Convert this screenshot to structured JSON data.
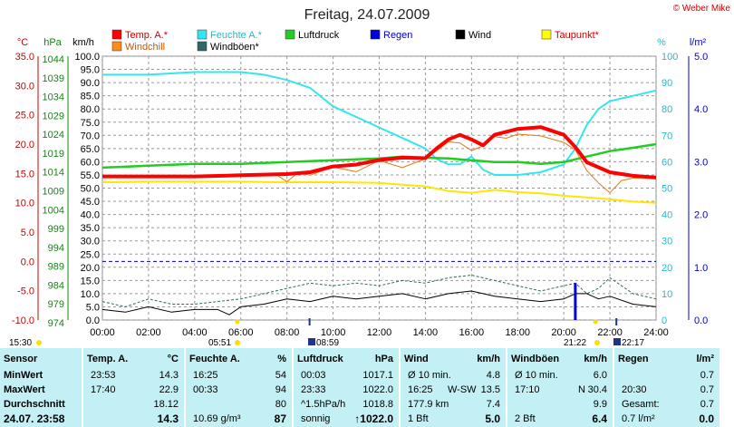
{
  "header": {
    "title": "Freitag, 24.07.2009",
    "copyright": "© Weber Mike"
  },
  "legend": [
    {
      "label": "Temp. A.*",
      "color": "#ff0000"
    },
    {
      "label": "Feuchte A.*",
      "color": "#33e6f0"
    },
    {
      "label": "Luftdruck",
      "color": "#22cc22"
    },
    {
      "label": "Regen",
      "color": "#0000e0"
    },
    {
      "label": "Wind",
      "color": "#000000"
    },
    {
      "label": "Taupunkt*",
      "color": "#ffff00"
    },
    {
      "label": "Windchill",
      "color": "#ff8c1a"
    },
    {
      "label": "Windböen*",
      "color": "#336666"
    }
  ],
  "axes": {
    "temp_unit": "°C",
    "pressure_unit": "hPa",
    "speed_unit": "km/h",
    "pct_unit": "%",
    "rain_unit": "l/m²",
    "temp_ticks": [
      "35.0",
      "30.0",
      "25.0",
      "20.0",
      "15.0",
      "10.0",
      "5.0",
      "0.0",
      "-5.0",
      "-10.0"
    ],
    "pressure_ticks": [
      "1044",
      "1039",
      "1034",
      "1029",
      "1024",
      "1019",
      "1014",
      "1009",
      "1004",
      "999",
      "994",
      "989",
      "984",
      "979",
      "974"
    ],
    "speed_ticks": [
      "100.0",
      "95.0",
      "90.0",
      "85.0",
      "80.0",
      "75.0",
      "70.0",
      "65.0",
      "60.0",
      "55.0",
      "50.0",
      "45.0",
      "40.0",
      "35.0",
      "30.0",
      "25.0",
      "20.0",
      "15.0",
      "10.0",
      "5.0",
      "0.0"
    ],
    "pct_ticks": [
      "100",
      "90",
      "80",
      "70",
      "60",
      "50",
      "40",
      "30",
      "20",
      "10",
      "0"
    ],
    "rain_ticks": [
      "5.0",
      "4.0",
      "3.0",
      "2.0",
      "1.0",
      "0.0"
    ],
    "time_ticks": [
      "00:00",
      "02:00",
      "04:00",
      "06:00",
      "08:00",
      "10:00",
      "12:00",
      "14:00",
      "16:00",
      "18:00",
      "20:00",
      "22:00",
      "24:00"
    ]
  },
  "sun_events": {
    "sunrise_label": "05:51",
    "sunset_label": "21:22",
    "moonrise_label": "08:59",
    "moonset_label": "22:17",
    "left_label": "15:30"
  },
  "chart_data": {
    "type": "line",
    "title": "Freitag, 24.07.2009",
    "x_range": [
      "00:00",
      "24:00"
    ],
    "series": [
      {
        "name": "Temp. A.*",
        "axis": "°C",
        "x": [
          0,
          2,
          4,
          6,
          8,
          9,
          10,
          11,
          12,
          13,
          14,
          14.5,
          15,
          15.5,
          16,
          16.5,
          17,
          17.5,
          18,
          19,
          20,
          20.5,
          21,
          22,
          23,
          24
        ],
        "values": [
          14.5,
          14.5,
          14.5,
          14.7,
          14.9,
          15.2,
          16.2,
          16.5,
          17.3,
          17.7,
          17.6,
          19.3,
          20.8,
          21.6,
          20.8,
          19.8,
          21.6,
          22.1,
          22.6,
          22.9,
          21.6,
          19.5,
          16.9,
          15.2,
          14.6,
          14.3
        ]
      },
      {
        "name": "Windchill",
        "axis": "°C",
        "x": [
          0,
          2,
          4,
          6,
          7.5,
          8,
          8.5,
          9,
          10,
          11,
          12,
          13,
          14,
          14.5,
          15,
          15.5,
          16,
          16.5,
          17,
          17.5,
          18,
          19,
          20,
          20.5,
          21,
          21.5,
          22,
          22.5,
          23,
          24
        ],
        "values": [
          14.5,
          14.5,
          14.5,
          14.7,
          14.9,
          13.6,
          15.2,
          14.7,
          16.1,
          15.3,
          17.2,
          16.0,
          17.5,
          18.9,
          20.4,
          20.2,
          18.9,
          19.7,
          21.3,
          21.0,
          21.7,
          21.4,
          20.3,
          19.0,
          15.5,
          13.4,
          11.7,
          13.8,
          14.2,
          14.3
        ]
      },
      {
        "name": "Feuchte A.*",
        "axis": "%",
        "x": [
          0,
          2,
          4,
          6,
          7,
          8,
          9,
          10,
          11,
          12,
          13,
          14,
          14.5,
          15,
          15.5,
          16,
          16.5,
          17,
          18,
          19,
          20,
          20.5,
          21,
          21.5,
          22,
          23,
          24
        ],
        "values": [
          93,
          93,
          94,
          94,
          93,
          91,
          88,
          81,
          77,
          73,
          69,
          65,
          61,
          59,
          59,
          62,
          57,
          55,
          55,
          56,
          59,
          65,
          74,
          80,
          83,
          85,
          87
        ]
      },
      {
        "name": "Luftdruck",
        "axis": "hPa",
        "x": [
          0,
          2,
          4,
          6,
          8,
          10,
          12,
          13,
          14,
          15,
          16,
          17,
          18,
          19,
          20,
          21,
          22,
          23,
          24
        ],
        "values": [
          1015.6,
          1016.1,
          1016.6,
          1016.6,
          1017.1,
          1017.6,
          1018.1,
          1018.6,
          1018.3,
          1018.1,
          1017.6,
          1017.1,
          1017.1,
          1016.6,
          1017.1,
          1018.6,
          1020.1,
          1021.0,
          1022.0
        ]
      },
      {
        "name": "Taupunkt*",
        "axis": "°C",
        "x": [
          0,
          2,
          4,
          6,
          8,
          10,
          12,
          14,
          15,
          16,
          17,
          18,
          19,
          20,
          21,
          22,
          23,
          24
        ],
        "values": [
          13.5,
          13.6,
          13.6,
          13.6,
          13.5,
          13.5,
          13.4,
          12.8,
          12.0,
          11.7,
          12.2,
          11.8,
          11.6,
          11.2,
          10.9,
          10.6,
          10.2,
          10.0
        ]
      },
      {
        "name": "Wind",
        "axis": "km/h",
        "x": [
          0,
          1,
          2,
          3,
          4,
          5,
          5.5,
          6,
          7,
          8,
          9,
          10,
          11,
          12,
          13,
          14,
          15,
          16,
          17,
          18,
          19,
          20,
          20.5,
          21,
          21.5,
          22,
          23,
          24
        ],
        "values": [
          4,
          3,
          5,
          3,
          4,
          4,
          2,
          5,
          6,
          8,
          7,
          9,
          8,
          9,
          10,
          8,
          10,
          11,
          9,
          8,
          7,
          8,
          10,
          10,
          8,
          9,
          6,
          5
        ]
      },
      {
        "name": "Windböen*",
        "axis": "km/h",
        "x": [
          0,
          1,
          2,
          3,
          4,
          5,
          6,
          7,
          8,
          9,
          10,
          11,
          12,
          13,
          14,
          15,
          16,
          17,
          18,
          19,
          20,
          20.5,
          21,
          21.5,
          22,
          23,
          24
        ],
        "values": [
          7,
          5,
          8,
          6,
          6,
          7,
          8,
          10,
          12,
          14,
          13,
          14,
          13,
          15,
          14,
          16,
          17,
          15,
          13,
          11,
          13,
          14,
          10,
          12,
          16,
          10,
          8
        ]
      },
      {
        "name": "Regen",
        "axis": "l/m²",
        "x": [
          20.5
        ],
        "values": [
          0.7
        ]
      }
    ]
  },
  "table": {
    "columns": [
      {
        "title": "Sensor",
        "unit": ""
      },
      {
        "title": "Temp. A.",
        "unit": "°C"
      },
      {
        "title": "Feuchte A.",
        "unit": "%"
      },
      {
        "title": "Luftdruck",
        "unit": "hPa"
      },
      {
        "title": "Wind",
        "unit": "km/h"
      },
      {
        "title": "Windböen",
        "unit": "km/h"
      },
      {
        "title": "Regen",
        "unit": "l/m²"
      }
    ],
    "row_labels": [
      "MinWert",
      "MaxWert",
      "Durchschnitt",
      "24.07. 23:58"
    ],
    "temp": [
      [
        "23:53",
        "14.3"
      ],
      [
        "17:40",
        "22.9"
      ],
      [
        "",
        "18.12"
      ],
      [
        "",
        "14.3"
      ]
    ],
    "humidity": [
      [
        "16:25",
        "54"
      ],
      [
        "00:33",
        "94"
      ],
      [
        "",
        "80"
      ],
      [
        "10.69 g/m³",
        "87"
      ]
    ],
    "pressure": [
      [
        "00:03",
        "1017.1"
      ],
      [
        "23:33",
        "1022.0"
      ],
      [
        "^1.5hPa/h",
        "1018.8"
      ],
      [
        "sonnig",
        "↑1022.0"
      ]
    ],
    "wind": [
      [
        "Ø 10 min.",
        "",
        "4.8"
      ],
      [
        "16:25",
        "W-SW",
        "13.5"
      ],
      [
        "177.9 km",
        "",
        "7.4"
      ],
      [
        "1 Bft",
        "",
        "5.0"
      ]
    ],
    "gust": [
      [
        "Ø 10 min.",
        "",
        "6.0"
      ],
      [
        "17:10",
        "N",
        "30.4"
      ],
      [
        "",
        "",
        "9.9"
      ],
      [
        "2 Bft",
        "",
        "6.4"
      ]
    ],
    "rain": [
      [
        "",
        "0.7"
      ],
      [
        "20:30",
        "0.7"
      ],
      [
        "Gesamt:",
        "0.7"
      ],
      [
        "0.7 l/m²",
        "0.0"
      ]
    ]
  }
}
